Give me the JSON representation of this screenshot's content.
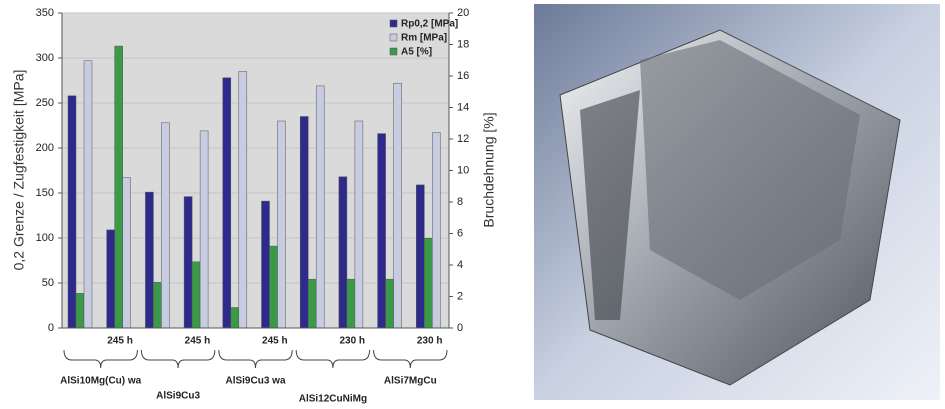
{
  "chart_data": {
    "type": "bar",
    "ylabel": "0,2 Grenze / Zugfestigkeit [MPa]",
    "y2label": "Bruchdehnung [%]",
    "categories": [
      null,
      "245 h",
      null,
      "245 h",
      null,
      "245 h",
      null,
      "230 h",
      null,
      "230 h"
    ],
    "groups": [
      "AlSi10Mg(Cu) wa",
      "AlSi9Cu3",
      "AlSi9Cu3 wa",
      "AlSi12CuNiMg",
      "AlSi7MgCu"
    ],
    "series": [
      {
        "name": "Rp0,2 [MPa]",
        "color": "#2e2a8c",
        "values": [
          258,
          109,
          151,
          146,
          278,
          141,
          235,
          168,
          216,
          159
        ]
      },
      {
        "name": "A5 [%]",
        "color": "#3a9a48",
        "axis": "y2",
        "values": [
          2.2,
          17.9,
          2.9,
          4.2,
          1.3,
          5.2,
          3.1,
          3.1,
          3.1,
          5.7
        ]
      },
      {
        "name": "Rm [MPa]",
        "color": "#c8cce0",
        "values": [
          297,
          167,
          228,
          219,
          285,
          230,
          269,
          230,
          272,
          217
        ]
      }
    ],
    "ylim": [
      0,
      350
    ],
    "yticks": [
      0,
      50,
      100,
      150,
      200,
      250,
      300,
      350
    ],
    "y2lim": [
      0,
      20
    ],
    "y2ticks": [
      0,
      2,
      4,
      6,
      8,
      10,
      12,
      14,
      16,
      18,
      20
    ],
    "grid": true
  }
}
